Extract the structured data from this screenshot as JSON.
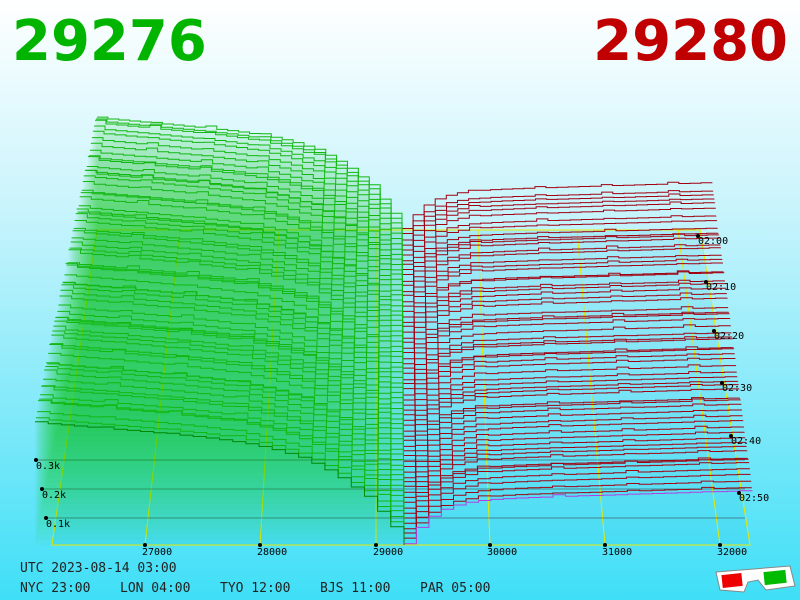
{
  "header": {
    "bid": "29276",
    "ask": "29280"
  },
  "price_axis": [
    "27000",
    "28000",
    "29000",
    "30000",
    "31000",
    "32000"
  ],
  "depth_axis": [
    "0.3k",
    "0.2k",
    "0.1k"
  ],
  "time_axis": [
    "02:00",
    "02:10",
    "02:20",
    "02:30",
    "02:40",
    "02:50"
  ],
  "footer": {
    "utc": "UTC 2023-08-14 03:00",
    "zones": [
      "NYC 23:00",
      "LON 04:00",
      "TYO 12:00",
      "BJS 11:00",
      "PAR 05:00"
    ]
  }
}
